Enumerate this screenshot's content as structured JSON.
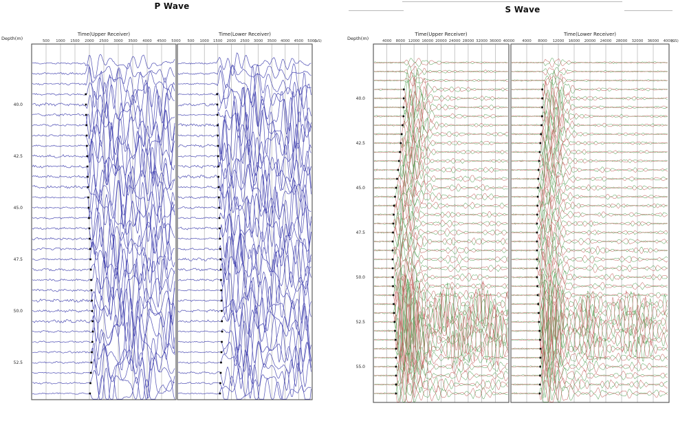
{
  "chart_data": {
    "type": "line",
    "subtype": "seismic-wiggle-trace-record",
    "description": "Downhole PS-logging seismogram record: P-wave and S-wave traces versus depth for upper and lower receivers; black squares mark first-break picks.",
    "panels": [
      {
        "id": "p-wave",
        "title": "P Wave",
        "depth_axis_label": "Depth(m)",
        "time_unit_label": "(uS)",
        "depth_tick_labels": [
          "40.0",
          "42.5",
          "45.0",
          "47.5",
          "50.0",
          "52.5"
        ],
        "depth_range": {
          "top": 38.0,
          "bottom": 54.0,
          "step": 0.5
        },
        "time_tick_labels": [
          "500",
          "1000",
          "1500",
          "2000",
          "2500",
          "3000",
          "3500",
          "4000",
          "4500",
          "5000"
        ],
        "time_axis_max": 5000,
        "receivers": [
          {
            "title": "Time(Upper Receiver)",
            "first_break_us": [
              [
                38,
                1860
              ],
              [
                40,
                1880
              ],
              [
                44,
                1950
              ],
              [
                48,
                2050
              ],
              [
                51,
                2120
              ],
              [
                54,
                2020
              ]
            ]
          },
          {
            "title": "Time(Lower Receiver)",
            "first_break_us": [
              [
                38,
                1450
              ],
              [
                40,
                1480
              ],
              [
                44,
                1530
              ],
              [
                48,
                1610
              ],
              [
                51,
                1660
              ],
              [
                54,
                1580
              ]
            ]
          }
        ],
        "amplitude_zones": [
          {
            "from": 38.0,
            "to": 39.0,
            "amp": 20,
            "tau": 70,
            "floor": 0.28
          },
          {
            "from": 39.0,
            "to": 40.0,
            "amp": 34,
            "tau": 120,
            "floor": 0.4
          },
          {
            "from": 40.0,
            "to": 52.0,
            "amp": 44,
            "tau": 280,
            "floor": 0.55
          },
          {
            "from": 52.0,
            "to": 54.1,
            "amp": 34,
            "tau": 230,
            "floor": 0.5
          }
        ],
        "style": {
          "trace_color": "#4040ae",
          "pick_color": "#000000",
          "grid_color": "#a3a3a3",
          "border_color": "#4d4d4d"
        }
      },
      {
        "id": "s-wave",
        "title": "S Wave",
        "depth_axis_label": "Depth(m)",
        "time_unit_label": "(uS)",
        "depth_tick_labels": [
          "40.0",
          "42.5",
          "45.0",
          "47.5",
          "50.0",
          "52.5",
          "55.0"
        ],
        "depth_range": {
          "top": 38.0,
          "bottom": 56.5,
          "step": 0.5
        },
        "time_tick_labels": [
          "4000",
          "8000",
          "12000",
          "16000",
          "20000",
          "24000",
          "28000",
          "32000",
          "36000",
          "40000"
        ],
        "time_axis_max": 40000,
        "receivers": [
          {
            "title": "Time(Upper Receiver)",
            "first_break_us": [
              [
                38,
                9100
              ],
              [
                41,
                8900
              ],
              [
                44,
                7300
              ],
              [
                46,
                6100
              ],
              [
                48,
                5700
              ],
              [
                50,
                5700
              ],
              [
                52,
                6100
              ],
              [
                54,
                6700
              ],
              [
                56.5,
                6700
              ]
            ]
          },
          {
            "title": "Time(Lower Receiver)",
            "first_break_us": [
              [
                38,
                8000
              ],
              [
                41,
                7900
              ],
              [
                44,
                7000
              ],
              [
                47,
                6600
              ],
              [
                50,
                6600
              ],
              [
                52,
                7000
              ],
              [
                54,
                7500
              ],
              [
                56.5,
                7300
              ]
            ]
          }
        ],
        "amplitude_zones": [
          {
            "from": 38.0,
            "to": 39.5,
            "burst": 5,
            "ring": 2.2,
            "tauR": 250
          },
          {
            "from": 39.5,
            "to": 44.0,
            "burst": 24,
            "ring": 4.0,
            "tauR": 260
          },
          {
            "from": 44.0,
            "to": 48.0,
            "burst": 18,
            "ring": 5.5,
            "tauR": 350
          },
          {
            "from": 48.0,
            "to": 51.5,
            "burst": 16,
            "ring": 7.0,
            "tauR": 420
          },
          {
            "from": 51.5,
            "to": 54.5,
            "burst": 30,
            "ring": 26,
            "tauR": 4000,
            "dense": true
          },
          {
            "from": 54.5,
            "to": 56.6,
            "burst": 20,
            "ring": 11,
            "tauR": 320
          }
        ],
        "style": {
          "trace_color_positive": "#c25f5c",
          "trace_color_negative": "#55a055",
          "pick_color": "#000000",
          "grid_color": "#a3a3a3",
          "border_color": "#4d4d4d"
        }
      }
    ]
  }
}
